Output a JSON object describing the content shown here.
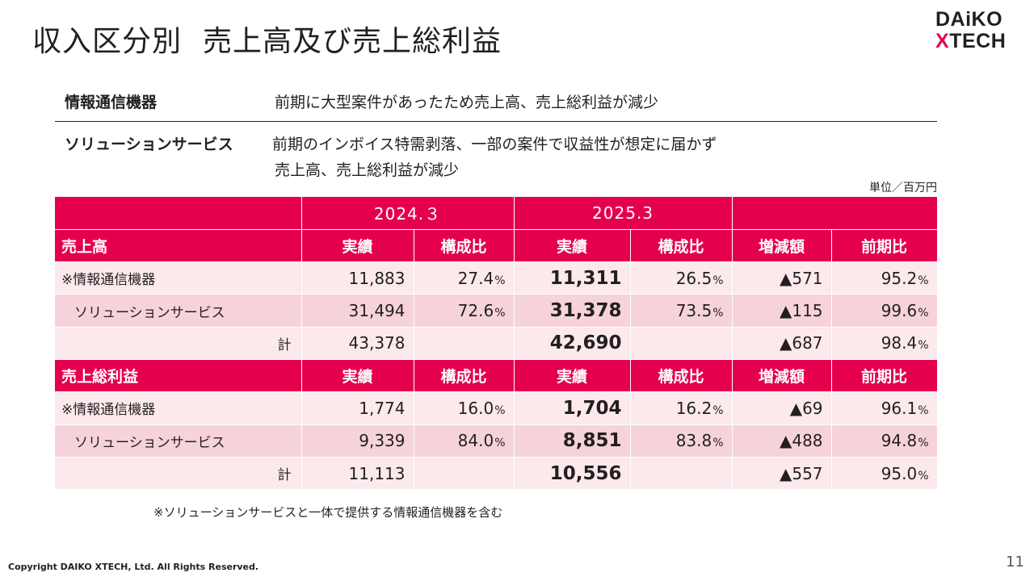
{
  "title": {
    "part1": "収入区分別",
    "part2": "売上高及び売上総利益"
  },
  "logo": {
    "line1": "DAiKO",
    "line2_x": "X",
    "line2_rest": "TECH"
  },
  "descriptions": [
    {
      "label": "情報通信機器",
      "lines": [
        "前期に大型案件があったため売上高、売上総利益が減少"
      ]
    },
    {
      "label": "ソリューションサービス",
      "lines": [
        "前期のインボイス特需剥落、一部の案件で収益性が想定に届かず",
        "売上高、売上総利益が減少"
      ]
    }
  ],
  "unit": "単位／百万円",
  "table": {
    "years": [
      "2024.３",
      "2025.3"
    ],
    "col_headers": [
      "実績",
      "構成比",
      "実績",
      "構成比",
      "増減額",
      "前期比"
    ],
    "pct_sign": "%",
    "sections": [
      {
        "title": "売上高",
        "rows": [
          {
            "name": "※情報通信機器",
            "v2024": "11,883",
            "r2024": "27.4",
            "v2025": "11,311",
            "r2025": "26.5",
            "diff": "▲571",
            "yoy": "95.2"
          },
          {
            "name": "ソリューションサービス",
            "v2024": "31,494",
            "r2024": "72.6",
            "v2025": "31,378",
            "r2025": "73.5",
            "diff": "▲115",
            "yoy": "99.6"
          },
          {
            "name": "計",
            "v2024": "43,378",
            "v2025": "42,690",
            "diff": "▲687",
            "yoy": "98.4"
          }
        ]
      },
      {
        "title": "売上総利益",
        "rows": [
          {
            "name": "※情報通信機器",
            "v2024": "1,774",
            "r2024": "16.0",
            "v2025": "1,704",
            "r2025": "16.2",
            "diff": "▲69",
            "yoy": "96.1"
          },
          {
            "name": "ソリューションサービス",
            "v2024": "9,339",
            "r2024": "84.0",
            "v2025": "8,851",
            "r2025": "83.8",
            "diff": "▲488",
            "yoy": "94.8"
          },
          {
            "name": "計",
            "v2024": "11,113",
            "v2025": "10,556",
            "diff": "▲557",
            "yoy": "95.0"
          }
        ]
      }
    ]
  },
  "note": "※ソリューションサービスと一体で提供する情報通信機器を含む",
  "copyright": "Copyright DAIKO XTECH, Ltd. All Rights Reserved.",
  "page_number": "11",
  "colors": {
    "accent": "#e5004f",
    "row_light": "#fbe9ec",
    "row_dark": "#f6d3da"
  }
}
